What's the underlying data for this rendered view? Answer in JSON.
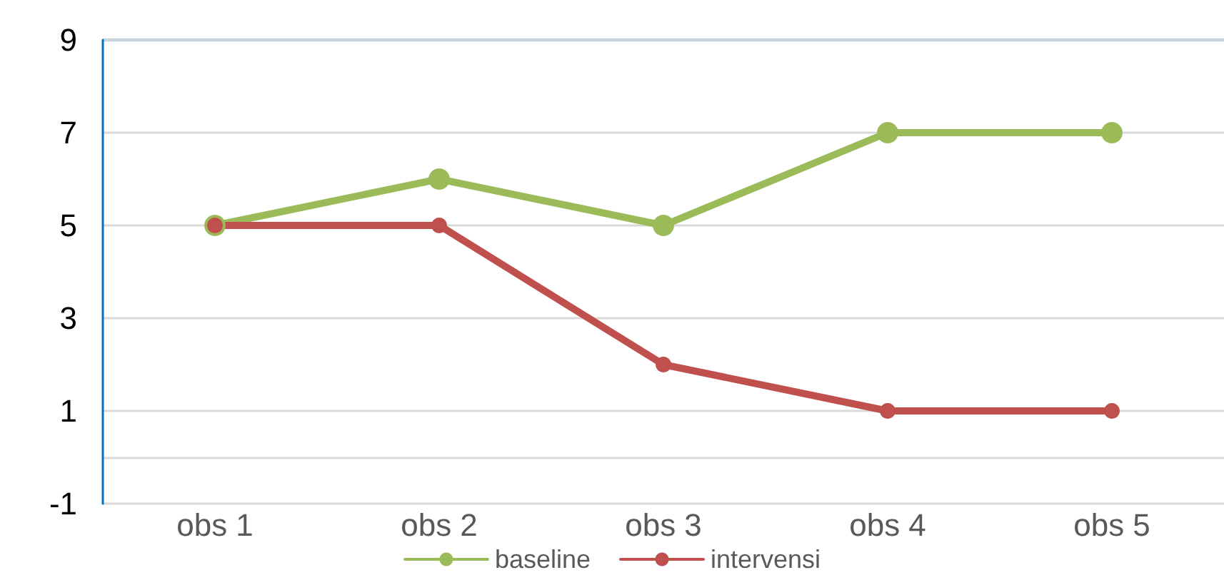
{
  "chart_data": {
    "type": "line",
    "categories": [
      "obs 1",
      "obs 2",
      "obs 3",
      "obs 4",
      "obs 5"
    ],
    "series": [
      {
        "name": "baseline",
        "color": "#9bbb59",
        "values": [
          5,
          6,
          5,
          7,
          7
        ]
      },
      {
        "name": "intervensi",
        "color": "#c0504d",
        "values": [
          5,
          5,
          2,
          1,
          1
        ]
      }
    ],
    "ylim": [
      -1,
      9
    ],
    "yticks": [
      -1,
      {
        "value": 0,
        "label": null
      },
      1,
      3,
      5,
      7,
      9
    ],
    "grid": "y",
    "legend": "bottom",
    "marker": "circle",
    "line_style": "solid"
  }
}
